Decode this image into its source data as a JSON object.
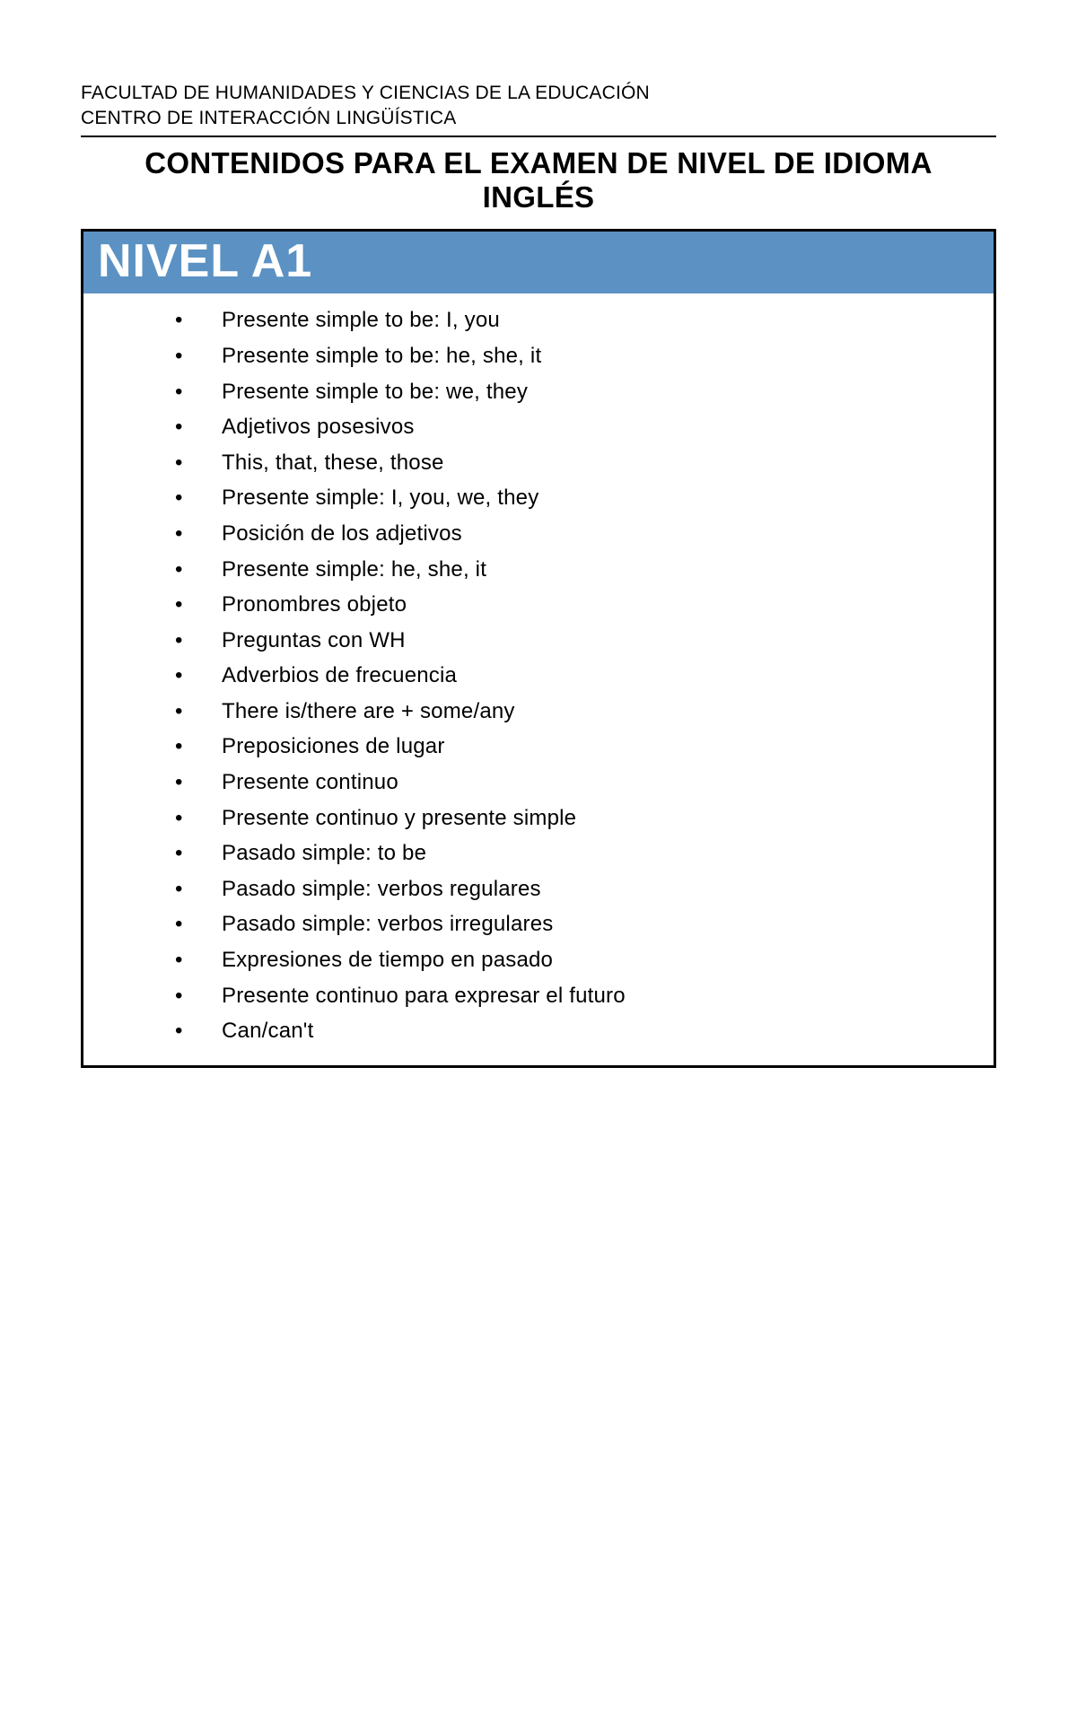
{
  "institution": {
    "line1": "FACULTAD DE HUMANIDADES Y CIENCIAS DE LA EDUCACIÓN",
    "line2": "CENTRO DE INTERACCIÓN LINGÜÍSTICA"
  },
  "title": "CONTENIDOS PARA EL EXAMEN DE NIVEL DE IDIOMA INGLÉS",
  "level": {
    "label": "NIVEL A1",
    "header_bg": "#5b92c3",
    "header_fg": "#ffffff",
    "border_color": "#000000",
    "topics": [
      "Presente simple to be: I, you",
      "Presente simple to be: he, she, it",
      "Presente simple to be: we, they",
      "Adjetivos posesivos",
      "This, that, these, those",
      "Presente simple: I, you, we, they",
      "Posición de los adjetivos",
      "Presente simple: he, she, it",
      "Pronombres objeto",
      "Preguntas con WH",
      "Adverbios de frecuencia",
      "There is/there are + some/any",
      "Preposiciones de lugar",
      "Presente continuo",
      "Presente continuo y presente simple",
      "Pasado simple: to be",
      "Pasado simple: verbos regulares",
      "Pasado simple: verbos irregulares",
      "Expresiones de tiempo en pasado",
      "Presente continuo para expresar el futuro",
      "Can/can't"
    ]
  },
  "colors": {
    "text": "#000000",
    "background": "#ffffff"
  }
}
